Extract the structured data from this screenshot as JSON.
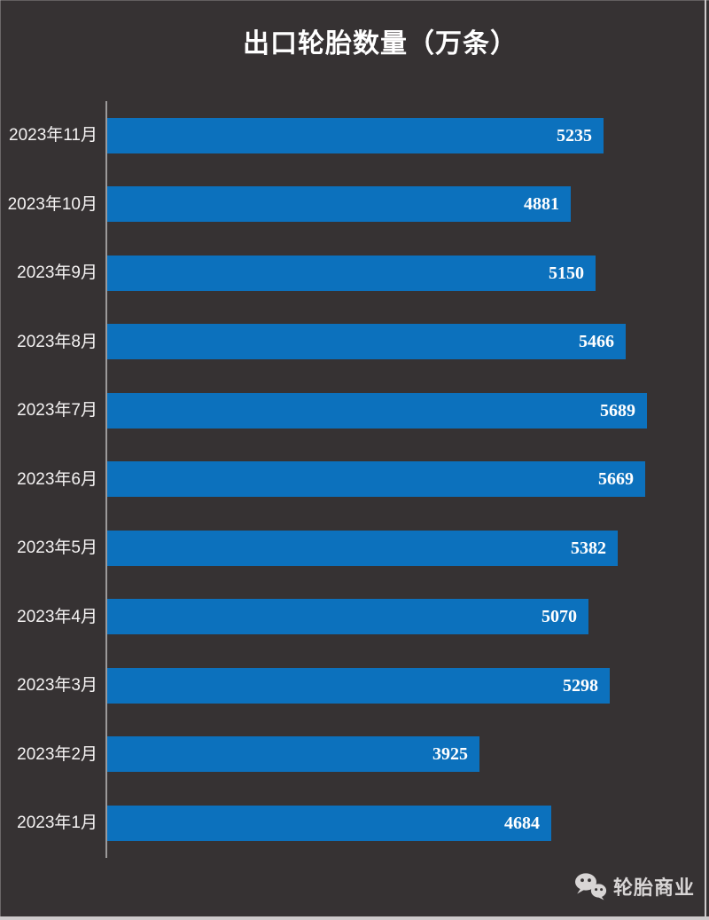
{
  "title": "出口轮胎数量（万条）",
  "watermark": {
    "label": "轮胎商业",
    "icon": "wechat-icon"
  },
  "colors": {
    "background": "#363233",
    "bar": "#0C71BD",
    "axis_line": "#9C9A9A",
    "title_text": "#FFFFFF",
    "category_text": "#F5F3F3",
    "value_text": "#FFFFFF",
    "watermark_text": "#D8D5D5",
    "edge_line": "#CDCACB"
  },
  "chart_data": {
    "type": "bar",
    "orientation": "horizontal",
    "title": "出口轮胎数量（万条）",
    "categories": [
      "2023年11月",
      "2023年10月",
      "2023年9月",
      "2023年8月",
      "2023年7月",
      "2023年6月",
      "2023年5月",
      "2023年4月",
      "2023年3月",
      "2023年2月",
      "2023年1月"
    ],
    "values": [
      5235,
      4881,
      5150,
      5466,
      5689,
      5669,
      5382,
      5070,
      5298,
      3925,
      4684
    ],
    "value_labels": "inside-end",
    "xlabel": "",
    "ylabel": "",
    "xlim": [
      0,
      6350
    ],
    "grid": false,
    "legend": false
  }
}
